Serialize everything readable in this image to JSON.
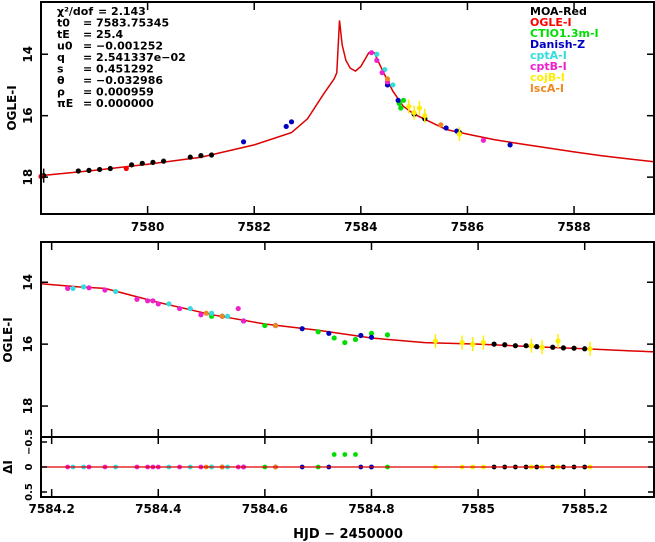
{
  "chart_data": [
    {
      "panel": "top",
      "type": "scatter",
      "ylabel": "OGLE-I",
      "xlim": [
        7578.0,
        7589.5
      ],
      "ylim": [
        19.2,
        12.3
      ],
      "x_ticks": [
        "7580",
        "7582",
        "7584",
        "7586",
        "7588"
      ],
      "x_tick_values": [
        7580,
        7582,
        7584,
        7586,
        7588
      ],
      "y_ticks": [
        "14",
        "16",
        "18"
      ],
      "y_tick_values": [
        14,
        16,
        18
      ],
      "y_inverted": true,
      "annotations": [
        {
          "label": "χ²/dof",
          "value": "= 2.143"
        },
        {
          "label": "t0",
          "value": "= 7583.75345"
        },
        {
          "label": "tE",
          "value": "= 25.4"
        },
        {
          "label": "u0",
          "value": "= −0.001252"
        },
        {
          "label": "q",
          "value": "= 2.541337e−02"
        },
        {
          "label": "s",
          "value": "= 0.451292"
        },
        {
          "label": "θ",
          "value": "= −0.032986"
        },
        {
          "label": "ρ",
          "value": "= 0.000959"
        },
        {
          "label": "πE",
          "value": "= 0.000000"
        }
      ],
      "legend_position": "top-right",
      "legend": [
        {
          "name": "MOA-Red",
          "color": "#000000"
        },
        {
          "name": "OGLE-I",
          "color": "#ff0000"
        },
        {
          "name": "CTIO1.3m-I",
          "color": "#00dd00"
        },
        {
          "name": "Danish-Z",
          "color": "#0000c0"
        },
        {
          "name": "cptA-I",
          "color": "#33dddd"
        },
        {
          "name": "cptB-I",
          "color": "#ee22cc"
        },
        {
          "name": "cojB-I",
          "color": "#ffee00"
        },
        {
          "name": "lscA-I",
          "color": "#ee8822"
        }
      ],
      "model_curve": {
        "color": "#dd0000",
        "x": [
          7578.0,
          7579.0,
          7580.0,
          7581.0,
          7582.0,
          7582.7,
          7583.0,
          7583.3,
          7583.5,
          7583.55,
          7583.6,
          7583.65,
          7583.72,
          7583.8,
          7583.9,
          7584.0,
          7584.15,
          7584.25,
          7584.4,
          7584.6,
          7584.8,
          7585.0,
          7585.3,
          7585.6,
          7586.0,
          7586.5,
          7587.0,
          7587.5,
          7588.0,
          7588.5,
          7589.0,
          7589.5
        ],
        "y": [
          17.95,
          17.78,
          17.58,
          17.35,
          16.95,
          16.55,
          16.1,
          15.3,
          14.8,
          14.6,
          12.9,
          13.7,
          14.2,
          14.45,
          14.55,
          14.4,
          13.95,
          13.95,
          14.5,
          15.2,
          15.7,
          15.95,
          16.2,
          16.45,
          16.6,
          16.78,
          16.92,
          17.05,
          17.18,
          17.3,
          17.4,
          17.5
        ]
      },
      "series": [
        {
          "name": "MOA-Red",
          "x": [
            7578.05,
            7578.7,
            7578.9,
            7579.1,
            7579.3,
            7579.7,
            7579.9,
            7580.1,
            7580.3,
            7580.8,
            7581.0,
            7581.2,
            7585.0,
            7585.2,
            7585.85
          ],
          "y": [
            17.95,
            17.8,
            17.78,
            17.75,
            17.72,
            17.6,
            17.55,
            17.52,
            17.48,
            17.35,
            17.3,
            17.28,
            15.95,
            16.1,
            16.55
          ]
        },
        {
          "name": "OGLE-I",
          "x": [
            7578.0,
            7579.6
          ],
          "y": [
            17.98,
            17.72
          ]
        },
        {
          "name": "CTIO1.3m-I",
          "x": [
            7584.72,
            7584.75,
            7584.8
          ],
          "y": [
            15.6,
            15.75,
            15.5
          ]
        },
        {
          "name": "Danish-Z",
          "x": [
            7581.8,
            7582.6,
            7582.7,
            7584.5,
            7584.7,
            7585.6,
            7585.8,
            7586.8
          ],
          "y": [
            16.85,
            16.35,
            16.2,
            15.0,
            15.5,
            16.4,
            16.5,
            16.95
          ]
        },
        {
          "name": "cptA-I",
          "x": [
            7584.3,
            7584.45,
            7584.6
          ],
          "y": [
            14.0,
            14.5,
            15.0
          ]
        },
        {
          "name": "cptB-I",
          "x": [
            7584.2,
            7584.3,
            7584.4,
            7584.5,
            7586.3
          ],
          "y": [
            13.95,
            14.2,
            14.6,
            14.9,
            16.8
          ]
        },
        {
          "name": "cojB-I",
          "x": [
            7584.9,
            7585.0,
            7585.1,
            7585.2,
            7585.85
          ],
          "y": [
            15.7,
            15.9,
            15.75,
            16.0,
            16.6
          ]
        },
        {
          "name": "lscA-I",
          "x": [
            7584.5,
            7585.5
          ],
          "y": [
            14.8,
            16.3
          ]
        }
      ]
    },
    {
      "panel": "bottom",
      "type": "scatter",
      "ylabel": "OGLE-I",
      "xlim": [
        7584.18,
        7585.33
      ],
      "ylim": [
        19.0,
        12.7
      ],
      "y_ticks": [
        "14",
        "16",
        "18"
      ],
      "y_tick_values": [
        14,
        16,
        18
      ],
      "y_inverted": true,
      "model_curve": {
        "color": "#dd0000",
        "x": [
          7584.18,
          7584.25,
          7584.3,
          7584.4,
          7584.5,
          7584.6,
          7584.7,
          7584.8,
          7584.9,
          7585.0,
          7585.1,
          7585.2,
          7585.33
        ],
        "y": [
          14.05,
          14.15,
          14.2,
          14.65,
          15.05,
          15.35,
          15.55,
          15.8,
          15.95,
          16.0,
          16.08,
          16.15,
          16.25
        ]
      },
      "series": [
        {
          "name": "MOA-Red",
          "x": [
            7585.03,
            7585.05,
            7585.07,
            7585.09,
            7585.11,
            7585.14,
            7585.16,
            7585.18,
            7585.2
          ],
          "y": [
            16.0,
            16.02,
            16.05,
            16.05,
            16.08,
            16.1,
            16.12,
            16.13,
            16.15
          ]
        },
        {
          "name": "CTIO1.3m-I",
          "x": [
            7584.5,
            7584.6,
            7584.7,
            7584.73,
            7584.75,
            7584.77,
            7584.8,
            7584.83
          ],
          "y": [
            15.1,
            15.4,
            15.6,
            15.8,
            15.95,
            15.85,
            15.65,
            15.7
          ]
        },
        {
          "name": "Danish-Z",
          "x": [
            7584.52,
            7584.56,
            7584.62,
            7584.67,
            7584.72,
            7584.78,
            7584.8
          ],
          "y": [
            15.1,
            15.25,
            15.4,
            15.5,
            15.65,
            15.72,
            15.78
          ]
        },
        {
          "name": "cptA-I",
          "x": [
            7584.24,
            7584.26,
            7584.32,
            7584.42,
            7584.46,
            7584.5,
            7584.53
          ],
          "y": [
            14.2,
            14.15,
            14.3,
            14.7,
            14.85,
            15.0,
            15.1
          ]
        },
        {
          "name": "cptB-I",
          "x": [
            7584.23,
            7584.27,
            7584.3,
            7584.36,
            7584.38,
            7584.39,
            7584.4,
            7584.44,
            7584.48,
            7584.56,
            7584.55
          ],
          "y": [
            14.2,
            14.18,
            14.25,
            14.55,
            14.6,
            14.6,
            14.7,
            14.85,
            15.05,
            15.25,
            14.85
          ]
        },
        {
          "name": "cojB-I",
          "x": [
            7584.92,
            7584.97,
            7584.99,
            7585.01,
            7585.1,
            7585.12,
            7585.15,
            7585.21
          ],
          "y": [
            15.9,
            15.95,
            16.0,
            15.95,
            16.05,
            16.1,
            15.9,
            16.15
          ]
        },
        {
          "name": "lscA-I",
          "x": [
            7584.49,
            7584.52,
            7584.62
          ],
          "y": [
            15.0,
            15.1,
            15.4
          ]
        }
      ]
    },
    {
      "panel": "residual",
      "type": "scatter",
      "ylabel": "ΔI",
      "xlabel": "HJD − 2450000",
      "xlim": [
        7584.18,
        7585.33
      ],
      "ylim": [
        0.6,
        -0.6
      ],
      "x_ticks": [
        "7584.2",
        "7584.4",
        "7584.6",
        "7584.8",
        "7585",
        "7585.2"
      ],
      "x_tick_values": [
        7584.2,
        7584.4,
        7584.6,
        7584.8,
        7585.0,
        7585.2
      ],
      "y_ticks": [
        "0.5",
        "0",
        "−0.5"
      ],
      "y_tick_values": [
        0.5,
        0,
        -0.5
      ],
      "zero_line_color": "#dd0000"
    }
  ]
}
